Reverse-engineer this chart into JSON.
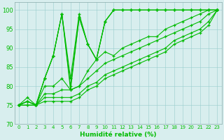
{
  "xlabel": "Humidité relative (%)",
  "background_color": "#d8eeee",
  "line_color": "#00bb00",
  "ylim": [
    70,
    102
  ],
  "yticks": [
    70,
    75,
    80,
    85,
    90,
    95,
    100
  ],
  "x_ticks": [
    0,
    1,
    2,
    3,
    4,
    5,
    6,
    7,
    8,
    9,
    10,
    11,
    12,
    13,
    14,
    15,
    16,
    17,
    18,
    19,
    20,
    21,
    22,
    23
  ],
  "series": [
    [
      75,
      76,
      75,
      82,
      88,
      99,
      82,
      99,
      91,
      87,
      97,
      100,
      100,
      100,
      100,
      100,
      100,
      100,
      100,
      100,
      100,
      100,
      100,
      100
    ],
    [
      75,
      77,
      75,
      82,
      88,
      99,
      80,
      98,
      91,
      87,
      97,
      100,
      100,
      100,
      100,
      100,
      100,
      100,
      100,
      100,
      100,
      100,
      100,
      100
    ],
    [
      75,
      76,
      75,
      82,
      88,
      99,
      79,
      98,
      91,
      87,
      97,
      100,
      100,
      100,
      100,
      100,
      100,
      100,
      100,
      100,
      100,
      100,
      100,
      100
    ],
    [
      75,
      76,
      75,
      80,
      80,
      82,
      79,
      80,
      84,
      87,
      89,
      88,
      90,
      91,
      92,
      93,
      93,
      95,
      96,
      97,
      98,
      99,
      100,
      100
    ],
    [
      75,
      76,
      75,
      78,
      78,
      79,
      79,
      80,
      82,
      84,
      86,
      87,
      88,
      89,
      90,
      91,
      92,
      93,
      94,
      95,
      96,
      97,
      99,
      100
    ],
    [
      75,
      75,
      75,
      77,
      77,
      77,
      77,
      78,
      80,
      81,
      83,
      84,
      85,
      86,
      87,
      88,
      89,
      90,
      92,
      93,
      94,
      95,
      97,
      100
    ],
    [
      75,
      75,
      75,
      76,
      76,
      76,
      76,
      77,
      79,
      80,
      82,
      83,
      84,
      85,
      86,
      87,
      88,
      89,
      91,
      92,
      93,
      94,
      96,
      100
    ]
  ]
}
